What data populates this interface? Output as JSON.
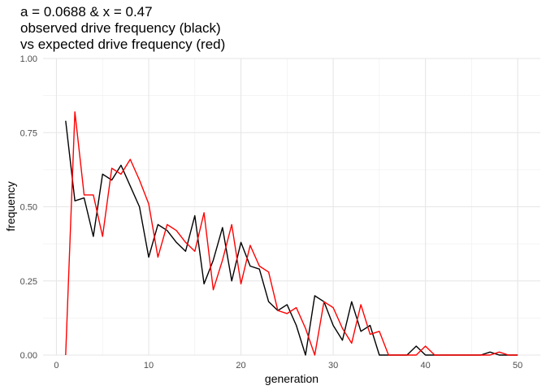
{
  "chart_data": {
    "type": "line",
    "title_lines": [
      "a = 0.0688 & x = 0.47",
      "observed drive frequency (black)",
      "vs expected drive frequency (red)"
    ],
    "xlabel": "generation",
    "ylabel": "frequency",
    "xlim": [
      -1.45,
      52.45
    ],
    "ylim": [
      0,
      1
    ],
    "x_ticks": [
      0,
      10,
      20,
      30,
      40,
      50
    ],
    "x_tick_labels": [
      "0",
      "10",
      "20",
      "30",
      "40",
      "50"
    ],
    "y_ticks": [
      0,
      0.25,
      0.5,
      0.75,
      1.0
    ],
    "y_tick_labels": [
      "0.00",
      "0.25",
      "0.50",
      "0.75",
      "1.00"
    ],
    "grid": true,
    "x": [
      1,
      2,
      3,
      4,
      5,
      6,
      7,
      8,
      9,
      10,
      11,
      12,
      13,
      14,
      15,
      16,
      17,
      18,
      19,
      20,
      21,
      22,
      23,
      24,
      25,
      26,
      27,
      28,
      29,
      30,
      31,
      32,
      33,
      34,
      35,
      36,
      37,
      38,
      39,
      40,
      41,
      42,
      43,
      44,
      45,
      46,
      47,
      48,
      49,
      50
    ],
    "series": [
      {
        "color": "#000000",
        "values": [
          0.79,
          0.52,
          0.53,
          0.4,
          0.61,
          0.59,
          0.64,
          0.57,
          0.5,
          0.33,
          0.44,
          0.42,
          0.38,
          0.35,
          0.47,
          0.24,
          0.32,
          0.43,
          0.25,
          0.38,
          0.3,
          0.29,
          0.18,
          0.15,
          0.17,
          0.1,
          0.0,
          0.2,
          0.18,
          0.1,
          0.05,
          0.18,
          0.08,
          0.1,
          0.0,
          0.0,
          0.0,
          0.0,
          0.03,
          0.0,
          0.0,
          0.0,
          0.0,
          0.0,
          0.0,
          0.0,
          0.01,
          0.0,
          0.0,
          0.0
        ]
      },
      {
        "color": "#ff0000",
        "values": [
          0.0,
          0.82,
          0.54,
          0.54,
          0.4,
          0.63,
          0.61,
          0.66,
          0.59,
          0.51,
          0.33,
          0.44,
          0.42,
          0.38,
          0.35,
          0.48,
          0.22,
          0.32,
          0.44,
          0.24,
          0.37,
          0.3,
          0.28,
          0.15,
          0.14,
          0.16,
          0.09,
          0.0,
          0.18,
          0.16,
          0.09,
          0.04,
          0.17,
          0.07,
          0.08,
          0.0,
          0.0,
          0.0,
          0.0,
          0.03,
          0.0,
          0.0,
          0.0,
          0.0,
          0.0,
          0.0,
          0.0,
          0.01,
          0.0,
          0.0
        ]
      }
    ]
  }
}
